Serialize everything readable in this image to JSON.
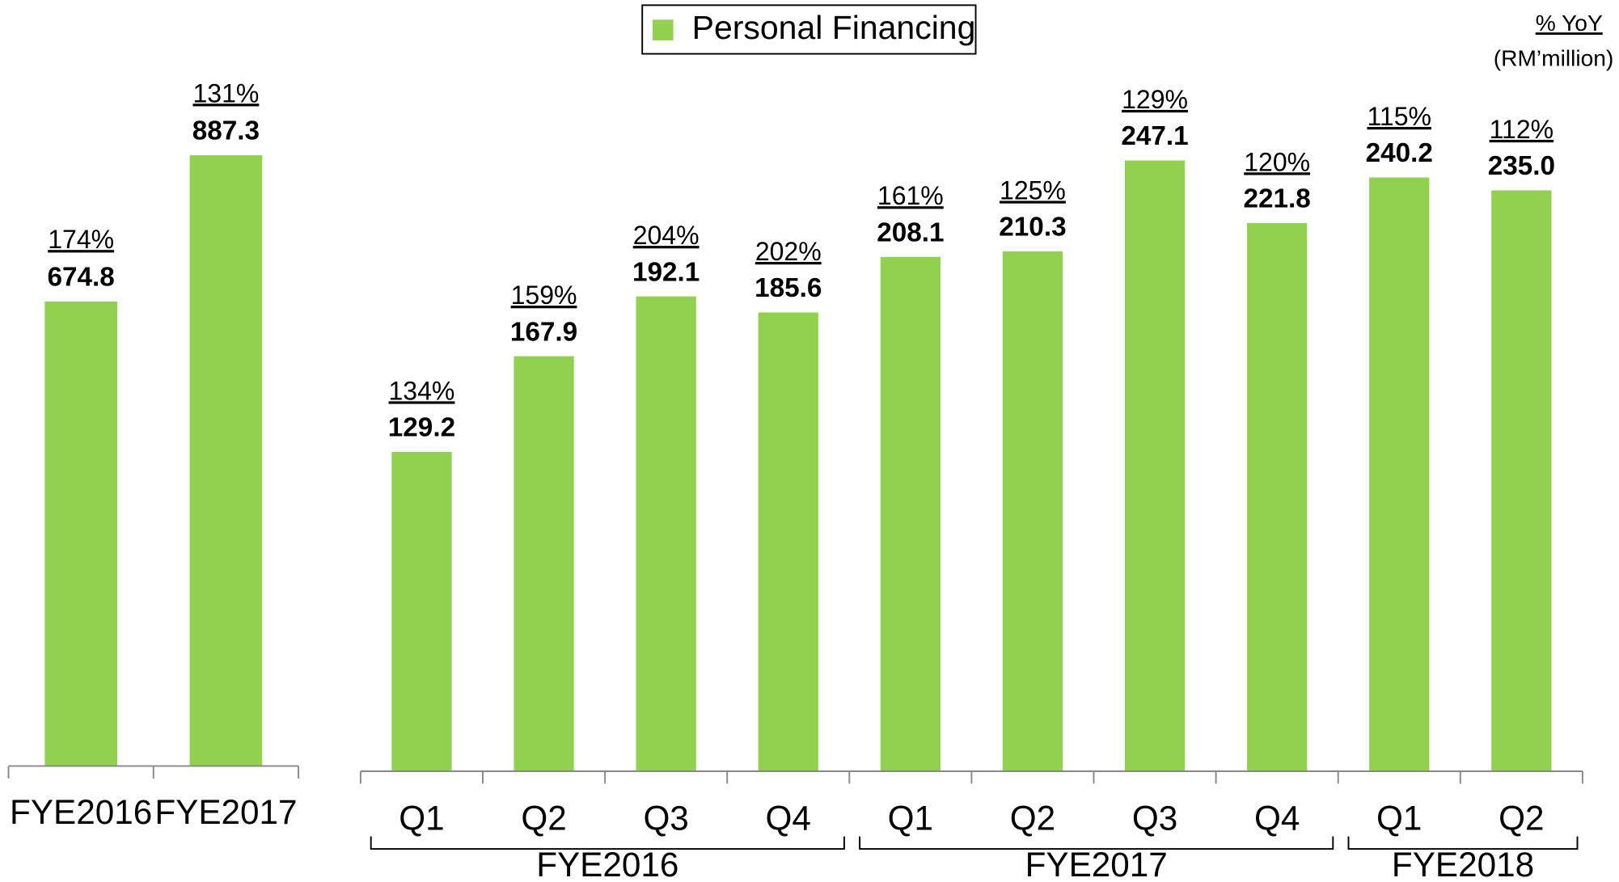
{
  "annotations": [
    "% YoY",
    "(RM’million)"
  ],
  "chart_data": [
    {
      "type": "bar",
      "categories": [
        "FYE2016",
        "FYE2017"
      ],
      "color": "#92d050",
      "values": [
        674.8,
        887.3
      ],
      "value_labels": [
        "674.8",
        "887.3"
      ],
      "yoy": {
        "values": [
          174,
          131
        ],
        "value_labels": [
          "174%",
          "131%"
        ]
      }
    },
    {
      "type": "bar",
      "groups": [
        {
          "name": "FYE2016",
          "categories": [
            "Q1",
            "Q2",
            "Q3",
            "Q4"
          ]
        },
        {
          "name": "FYE2017",
          "categories": [
            "Q1",
            "Q2",
            "Q3",
            "Q4"
          ]
        },
        {
          "name": "FYE2018",
          "categories": [
            "Q1",
            "Q2"
          ]
        }
      ],
      "series": [
        {
          "name": "Personal Financing",
          "color": "#92d050",
          "values": [
            129.2,
            167.9,
            192.1,
            185.6,
            208.1,
            210.3,
            247.1,
            221.8,
            240.2,
            235.0
          ],
          "value_labels": [
            "129.2",
            "167.9",
            "192.1",
            "185.6",
            "208.1",
            "210.3",
            "247.1",
            "221.8",
            "240.2",
            "235.0"
          ]
        }
      ],
      "yoy": {
        "values": [
          134,
          159,
          204,
          202,
          161,
          125,
          129,
          120,
          115,
          112
        ],
        "value_labels": [
          "134%",
          "159%",
          "204%",
          "202%",
          "161%",
          "125%",
          "129%",
          "120%",
          "115%",
          "112%"
        ]
      }
    }
  ]
}
